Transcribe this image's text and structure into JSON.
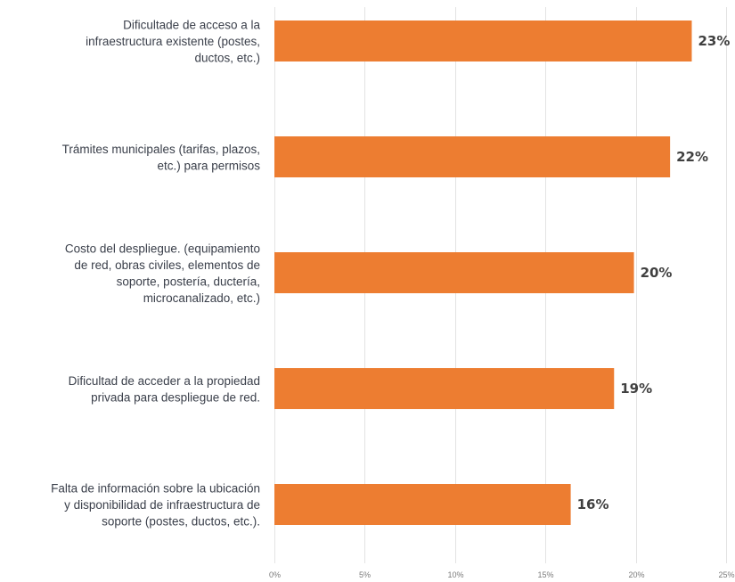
{
  "chart_data": {
    "type": "bar",
    "orientation": "horizontal",
    "categories": [
      "Dificultade de acceso a la infraestructura existente (postes, ductos, etc.)",
      "Trámites municipales (tarifas, plazos, etc.) para permisos",
      "Costo del despliegue. (equipamiento de red, obras civiles, elementos de soporte, postería, ductería, microcanalizado, etc.)",
      "Dificultad de acceder a la propiedad privada para despliegue de red.",
      "Falta de información sobre la ubicación y disponibilidad de infraestructura de soporte (postes, ductos, etc.)."
    ],
    "category_lines": [
      [
        "Dificultade de acceso a la",
        "infraestructura existente (postes,",
        "ductos, etc.)"
      ],
      [
        "Trámites municipales (tarifas, plazos,",
        "etc.) para permisos"
      ],
      [
        "Costo del despliegue. (equipamiento",
        "de red, obras civiles, elementos de",
        "soporte, postería, ductería,",
        "microcanalizado, etc.)"
      ],
      [
        "Dificultad de acceder a la propiedad",
        "privada para despliegue de red."
      ],
      [
        "Falta de información sobre la ubicación",
        "y disponibilidad de infraestructura de",
        "soporte (postes, ductos, etc.)."
      ]
    ],
    "values": [
      23.1,
      21.9,
      19.9,
      18.8,
      16.4
    ],
    "data_labels": [
      "23%",
      "22%",
      "20%",
      "19%",
      "16%"
    ],
    "x_ticks": [
      0,
      5,
      10,
      15,
      20,
      25
    ],
    "x_tick_labels": [
      "0%",
      "5%",
      "10%",
      "15%",
      "20%",
      "25%"
    ],
    "xlim": [
      0,
      25
    ],
    "grid": true,
    "bar_color": "#ED7D31",
    "title": "",
    "xlabel": "",
    "ylabel": ""
  }
}
